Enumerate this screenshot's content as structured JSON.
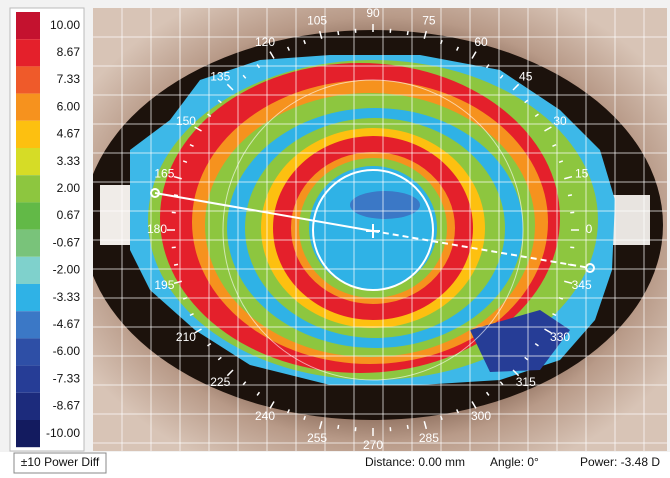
{
  "scale": {
    "levels": [
      {
        "label": "10.00",
        "color": "#c4122f"
      },
      {
        "label": "8.67",
        "color": "#e4202b"
      },
      {
        "label": "7.33",
        "color": "#ef5a2a"
      },
      {
        "label": "6.00",
        "color": "#f6921e"
      },
      {
        "label": "4.67",
        "color": "#fdc010"
      },
      {
        "label": "3.33",
        "color": "#d6dc26"
      },
      {
        "label": "2.00",
        "color": "#8dc63f"
      },
      {
        "label": "0.67",
        "color": "#62b947"
      },
      {
        "label": "-0.67",
        "color": "#79c37a"
      },
      {
        "label": "-2.00",
        "color": "#7fd1cc"
      },
      {
        "label": "-3.33",
        "color": "#2fb2e6"
      },
      {
        "label": "-4.67",
        "color": "#3b78c6"
      },
      {
        "label": "-6.00",
        "color": "#2e4fa6"
      },
      {
        "label": "-7.33",
        "color": "#263d96"
      },
      {
        "label": "-8.67",
        "color": "#1c2b7c"
      },
      {
        "label": "-10.00",
        "color": "#131b5f"
      }
    ]
  },
  "angles": [
    "0",
    "15",
    "30",
    "45",
    "60",
    "75",
    "90",
    "105",
    "120",
    "135",
    "150",
    "165",
    "180",
    "195",
    "210",
    "225",
    "240",
    "255",
    "270",
    "285",
    "300",
    "315",
    "330",
    "345"
  ],
  "button": "±10 Power Diff",
  "status": {
    "distance": "Distance: 0.00 mm",
    "angle": "Angle: 0°",
    "power": "Power: -3.48 D"
  }
}
